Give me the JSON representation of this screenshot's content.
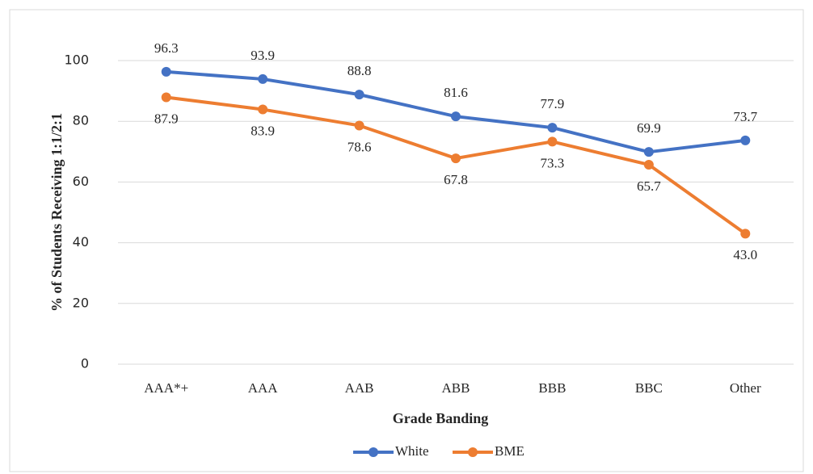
{
  "chart_data": {
    "type": "line",
    "y_label": "% of Students Receiving 1:1/2:1",
    "x_label": "Grade Banding",
    "categories": [
      "AAA*+",
      "AAA",
      "AAB",
      "ABB",
      "BBB",
      "BBC",
      "Other"
    ],
    "series": [
      {
        "name": "White",
        "color": "#4472c4",
        "values": [
          96.3,
          93.9,
          88.8,
          81.6,
          77.9,
          69.9,
          73.7
        ]
      },
      {
        "name": "BME",
        "color": "#ed7d31",
        "values": [
          87.9,
          83.9,
          78.6,
          67.8,
          73.3,
          65.7,
          43
        ],
        "value_labels": [
          "87.9",
          "83.9",
          "78.6",
          "67.8",
          "73.3",
          "65.7",
          "43.0"
        ]
      }
    ],
    "ylim": [
      0,
      100
    ],
    "yticks": [
      0,
      20,
      40,
      60,
      80,
      100
    ],
    "grid": true,
    "legend": "bottom"
  }
}
